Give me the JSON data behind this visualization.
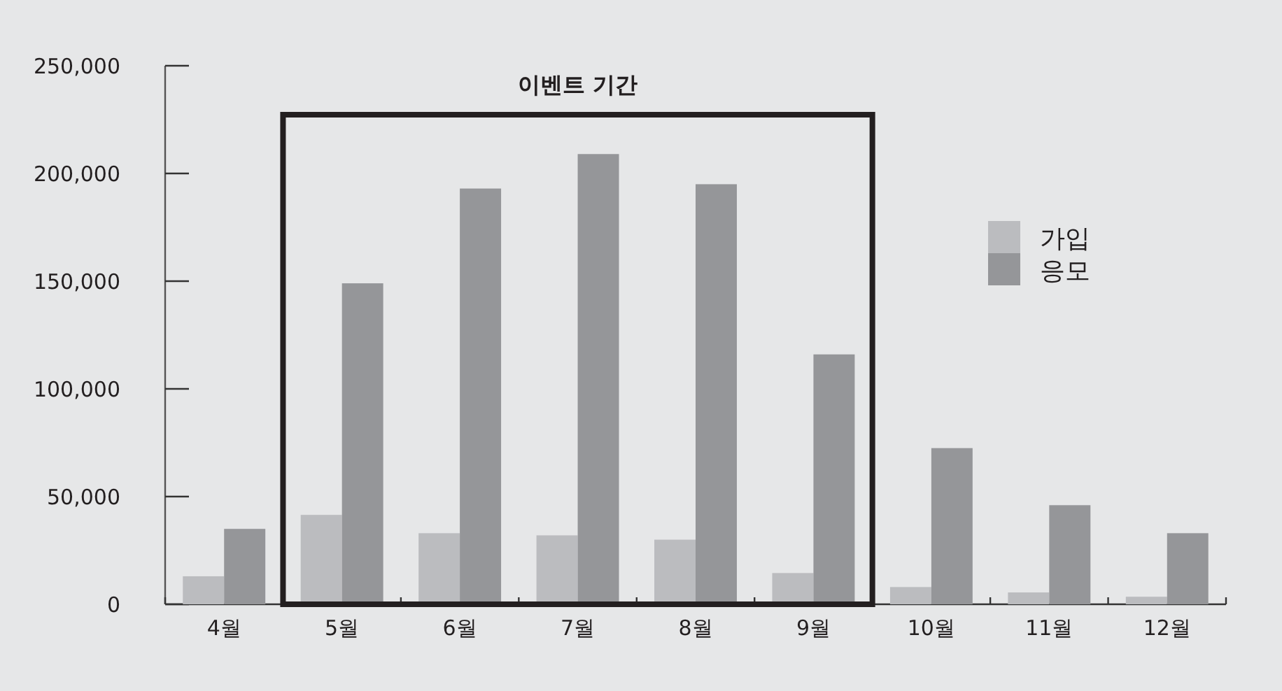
{
  "chart_data": {
    "type": "bar",
    "categories": [
      "4월",
      "5월",
      "6월",
      "7월",
      "8월",
      "9월",
      "10월",
      "11월",
      "12월"
    ],
    "series": [
      {
        "name": "가입",
        "color": "#bbbcbf",
        "values": [
          13000,
          41500,
          33000,
          32000,
          30000,
          14500,
          8000,
          5500,
          3500
        ]
      },
      {
        "name": "응모",
        "color": "#959699",
        "values": [
          35000,
          149000,
          193000,
          209000,
          195000,
          116000,
          72500,
          46000,
          33000
        ]
      }
    ],
    "ylim": [
      0,
      250000
    ],
    "yticks": [
      {
        "value": 0,
        "label": "0"
      },
      {
        "value": 50000,
        "label": "50,000"
      },
      {
        "value": 100000,
        "label": "100,000"
      },
      {
        "value": 150000,
        "label": "150,000"
      },
      {
        "value": 200000,
        "label": "200,000"
      },
      {
        "value": 250000,
        "label": "250,000"
      }
    ],
    "annotations": [
      "이벤트 기간"
    ],
    "legend": "right",
    "grid": false
  }
}
